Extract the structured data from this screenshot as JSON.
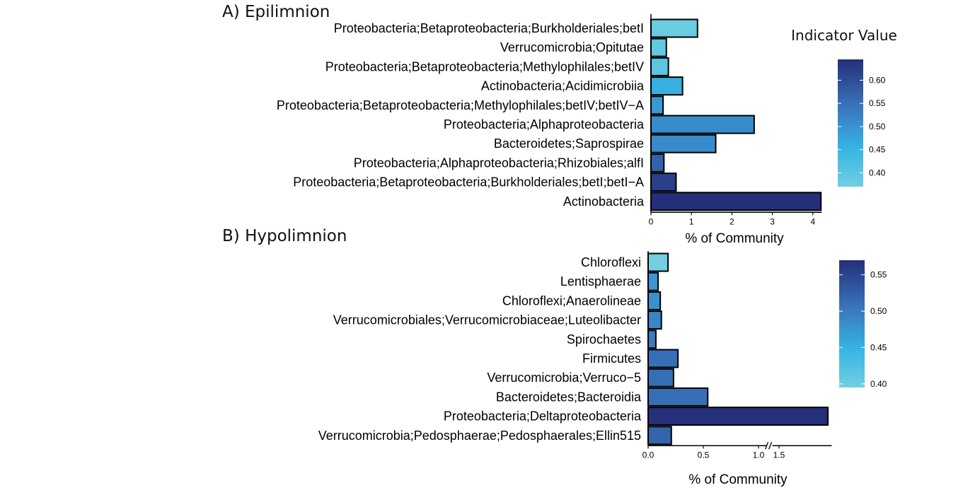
{
  "legend_title": "Indicator Value",
  "chart_data": [
    {
      "type": "bar",
      "orientation": "horizontal",
      "title": "A) Epilimnion",
      "xlabel": "% of Community",
      "ylabel": "",
      "xlim": [
        0,
        4.2
      ],
      "xticks": [
        "0",
        "1",
        "2",
        "3",
        "4"
      ],
      "categories": [
        "Proteobacteria;Betaproteobacteria;Burkholderiales;betI",
        "Verrucomicrobia;Opitutae",
        "Proteobacteria;Betaproteobacteria;Methylophilales;betIV",
        "Actinobacteria;Acidimicrobiia",
        "Proteobacteria;Betaproteobacteria;Methylophilales;betIV;betIV−A",
        "Proteobacteria;Alphaproteobacteria",
        "Bacteroidetes;Saprospirae",
        "Proteobacteria;Alphaproteobacteria;Rhizobiales;alfI",
        "Proteobacteria;Betaproteobacteria;Burkholderiales;betI;betI−A",
        "Actinobacteria"
      ],
      "values": [
        1.15,
        0.38,
        0.43,
        0.78,
        0.3,
        2.55,
        1.6,
        0.32,
        0.62,
        4.2
      ],
      "indicator_values": [
        0.38,
        0.39,
        0.4,
        0.46,
        0.49,
        0.51,
        0.51,
        0.57,
        0.62,
        0.645
      ],
      "color_scale": {
        "min": 0.37,
        "max": 0.645,
        "low_color": "#72cfe1",
        "mid_color": "#35b5e3",
        "high_color": "#262f7a",
        "ticks": [
          "0.40",
          "0.45",
          "0.50",
          "0.55",
          "0.60"
        ]
      }
    },
    {
      "type": "bar",
      "orientation": "horizontal",
      "title": "B) Hypolimnion",
      "xlabel": "% of Community",
      "ylabel": "",
      "axis_break": [
        1.1,
        1.45
      ],
      "xlim": [
        0,
        2.0
      ],
      "xticks": [
        "0.0",
        "0.5",
        "1.0",
        "1.5"
      ],
      "categories": [
        "Chloroflexi",
        "Lentisphaerae",
        "Chloroflexi;Anaerolineae",
        "Verrucomicrobiales;Verrucomicrobiaceae;Luteolibacter",
        "Spirochaetes",
        "Firmicutes",
        "Verrucomicrobia;Verruco−5",
        "Bacteroidetes;Bacteroidia",
        "Proteobacteria;Deltaproteobacteria",
        "Verrucomicrobia;Pedosphaerae;Pedosphaerales;Ellin515"
      ],
      "values": [
        0.18,
        0.09,
        0.11,
        0.12,
        0.07,
        0.27,
        0.23,
        0.54,
        1.97,
        0.21
      ],
      "indicator_values": [
        0.39,
        0.475,
        0.48,
        0.49,
        0.5,
        0.51,
        0.51,
        0.51,
        0.57,
        0.52
      ],
      "color_scale": {
        "min": 0.395,
        "max": 0.57,
        "low_color": "#72cfe1",
        "mid_color": "#35b5e3",
        "high_color": "#262f7a",
        "ticks": [
          "0.40",
          "0.45",
          "0.50",
          "0.55"
        ]
      }
    }
  ]
}
